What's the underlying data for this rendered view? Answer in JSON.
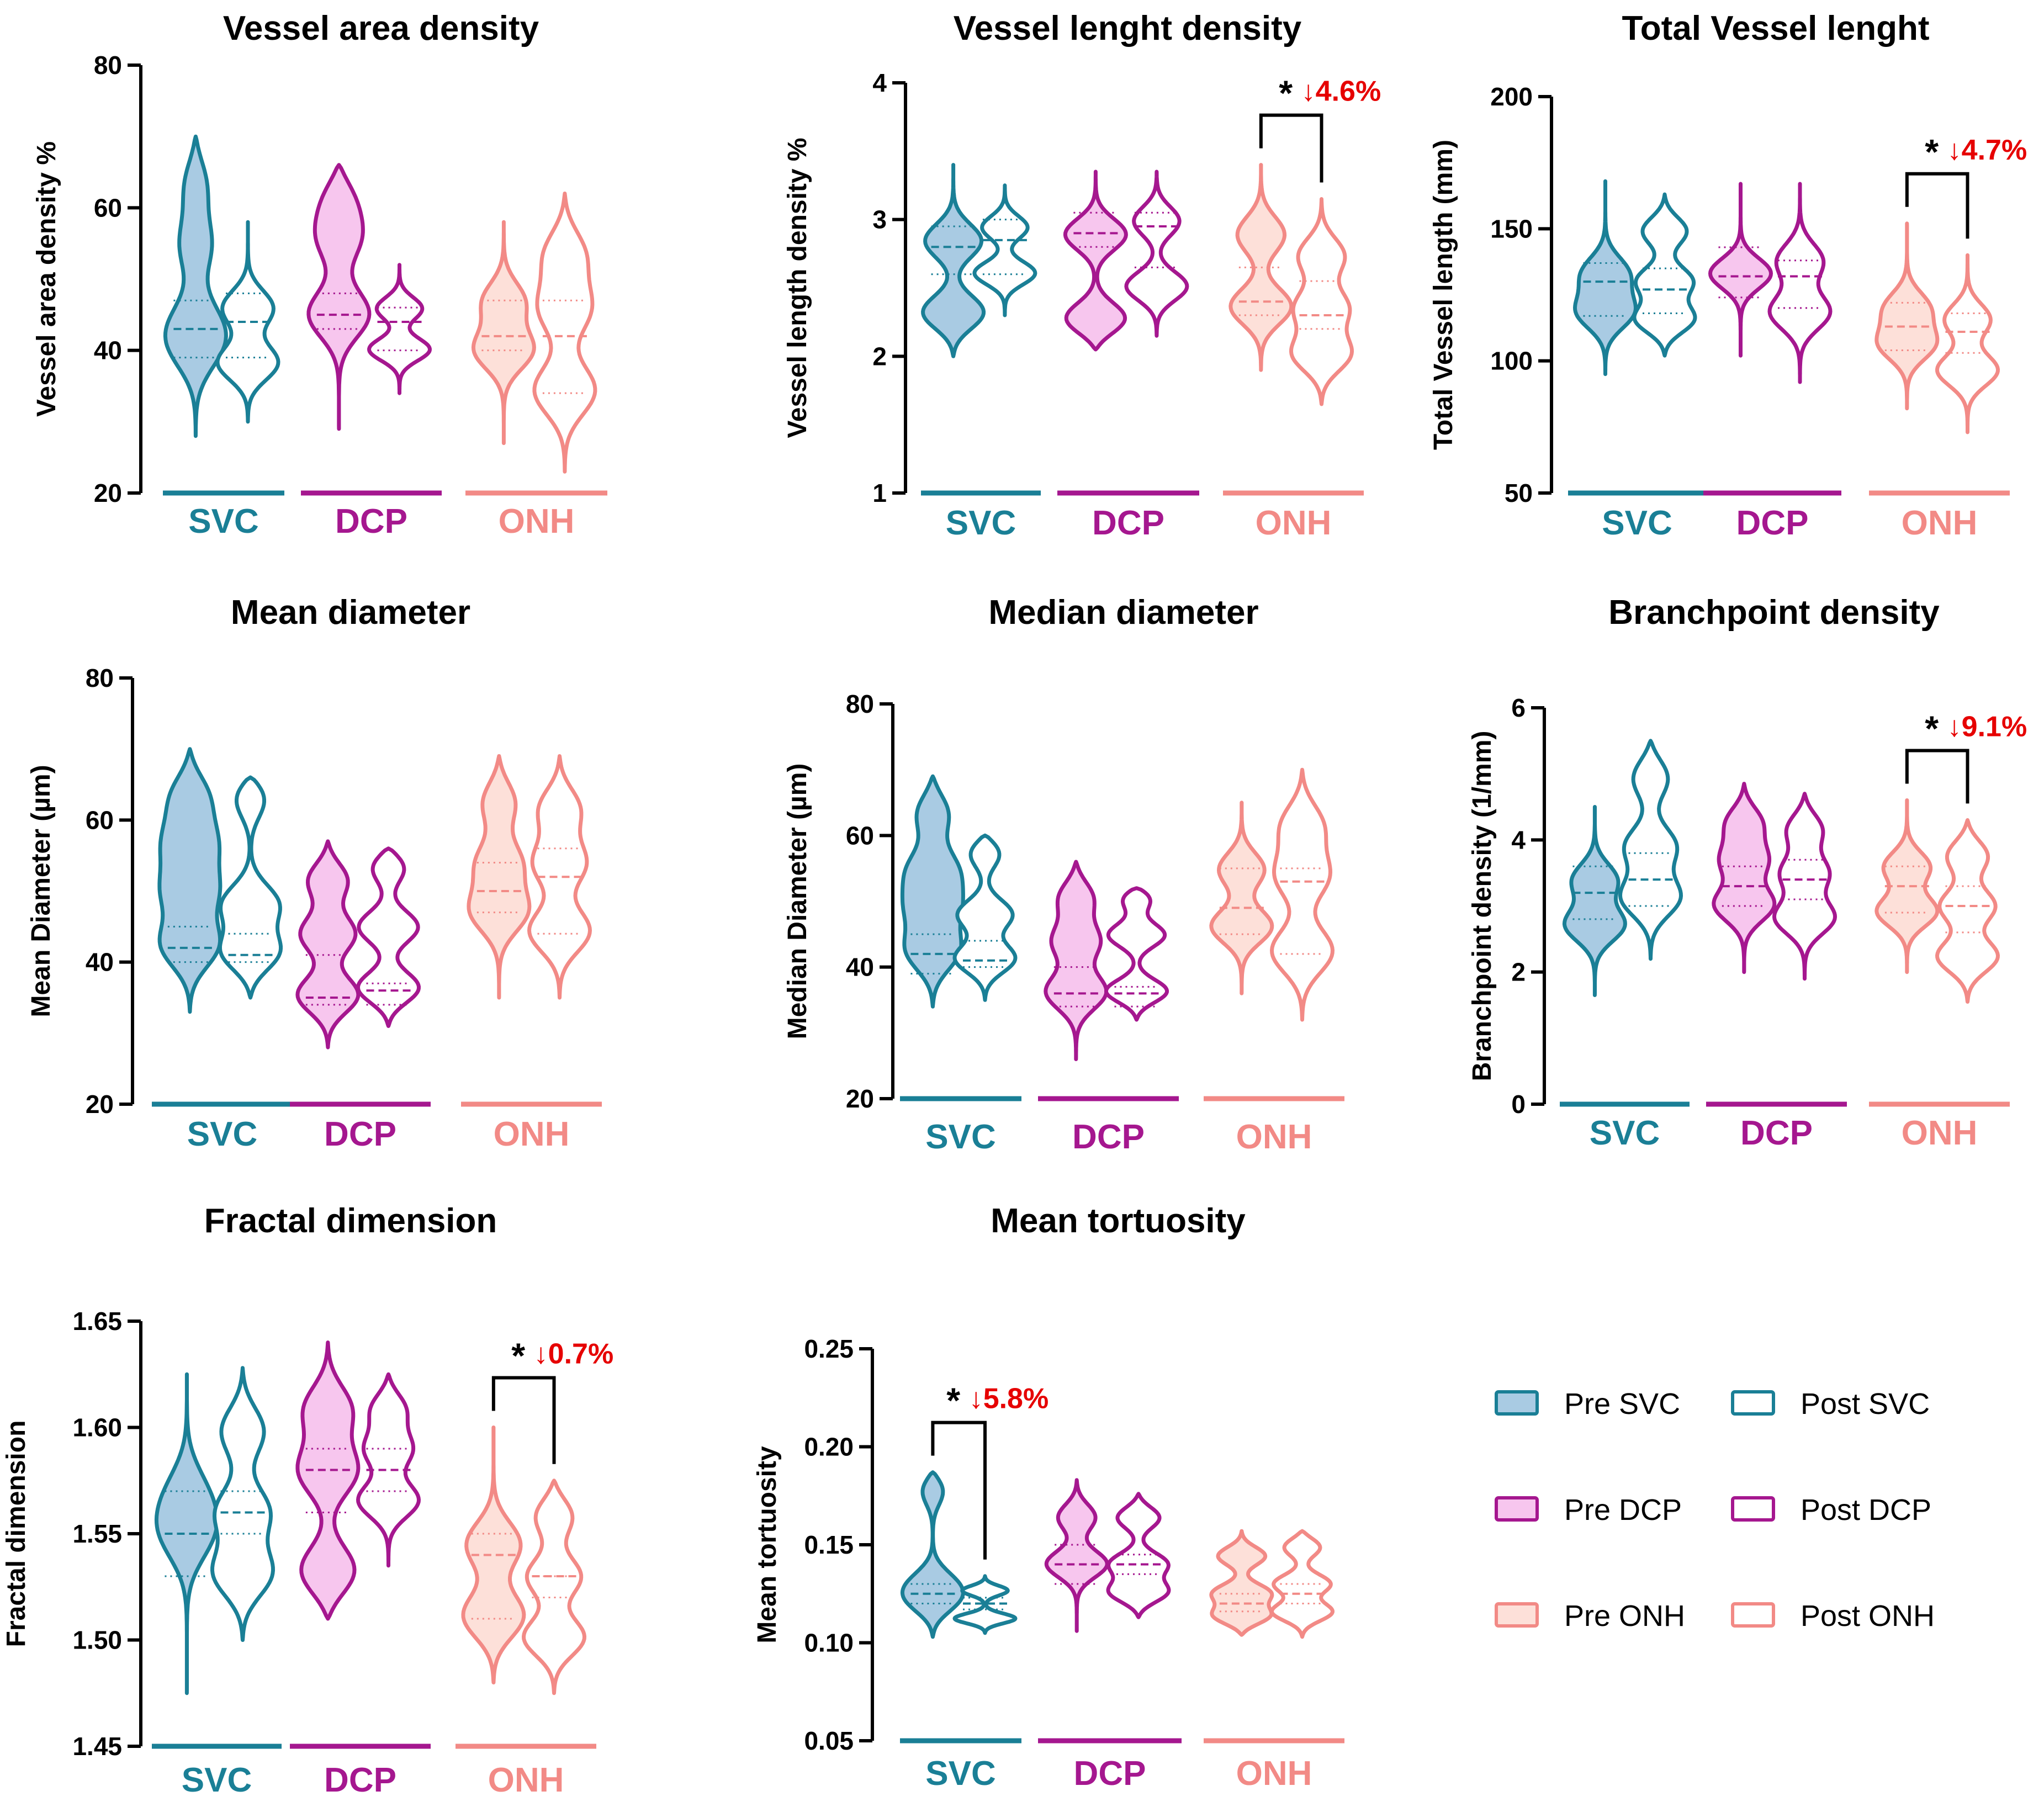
{
  "colors": {
    "SVC": "#1a7f96",
    "DCP": "#a5178f",
    "ONH": "#f28a86",
    "SVC_fill": "#a9cbe3",
    "DCP_fill": "#f7c6ee",
    "ONH_fill": "#fde0d9",
    "significance": "#e60000"
  },
  "groups": [
    "SVC",
    "DCP",
    "ONH"
  ],
  "legend": [
    {
      "label": "Pre SVC",
      "group": "SVC",
      "filled": true
    },
    {
      "label": "Post SVC",
      "group": "SVC",
      "filled": false
    },
    {
      "label": "Pre DCP",
      "group": "DCP",
      "filled": true
    },
    {
      "label": "Post DCP",
      "group": "DCP",
      "filled": false
    },
    {
      "label": "Pre ONH",
      "group": "ONH",
      "filled": true
    },
    {
      "label": "Post ONH",
      "group": "ONH",
      "filled": false
    }
  ],
  "chart_data": [
    {
      "type": "violin",
      "title": "Vessel area density",
      "ylabel": "Vessel area density %",
      "ylim": [
        20,
        80
      ],
      "yticks": [
        "20",
        "40",
        "60",
        "80"
      ],
      "categories": [
        "SVC",
        "DCP",
        "ONH"
      ],
      "series": [
        {
          "name": "Pre SVC",
          "min": 28,
          "max": 70,
          "median": 43,
          "q1": 39,
          "q3": 47,
          "modes": [
            40,
            44,
            55,
            64
          ]
        },
        {
          "name": "Post SVC",
          "min": 30,
          "max": 58,
          "median": 44,
          "q1": 39,
          "q3": 48,
          "modes": [
            38,
            46
          ]
        },
        {
          "name": "Pre DCP",
          "min": 29,
          "max": 66,
          "median": 45,
          "q1": 43,
          "q3": 48,
          "modes": [
            45,
            56,
            62
          ]
        },
        {
          "name": "Post DCP",
          "min": 34,
          "max": 52,
          "median": 44,
          "q1": 40,
          "q3": 46,
          "modes": [
            40,
            46
          ]
        },
        {
          "name": "Pre ONH",
          "min": 27,
          "max": 58,
          "median": 42,
          "q1": 40,
          "q3": 47,
          "modes": [
            40,
            47
          ]
        },
        {
          "name": "Post ONH",
          "min": 23,
          "max": 62,
          "median": 42,
          "q1": 34,
          "q3": 47,
          "modes": [
            34,
            46,
            54
          ]
        }
      ],
      "significance": null
    },
    {
      "type": "violin",
      "title": "Vessel lenght density",
      "ylabel": "Vessel length density %",
      "ylim": [
        1,
        4
      ],
      "yticks": [
        "1",
        "2",
        "3",
        "4"
      ],
      "categories": [
        "SVC",
        "DCP",
        "ONH"
      ],
      "series": [
        {
          "name": "Pre SVC",
          "min": 2.0,
          "max": 3.4,
          "median": 2.8,
          "q1": 2.6,
          "q3": 2.95,
          "modes": [
            2.3,
            2.85
          ]
        },
        {
          "name": "Post SVC",
          "min": 2.3,
          "max": 3.25,
          "median": 2.85,
          "q1": 2.6,
          "q3": 3.0,
          "modes": [
            2.6,
            2.95
          ]
        },
        {
          "name": "Pre DCP",
          "min": 2.05,
          "max": 3.35,
          "median": 2.9,
          "q1": 2.8,
          "q3": 3.05,
          "modes": [
            2.25,
            2.9
          ]
        },
        {
          "name": "Post DCP",
          "min": 2.15,
          "max": 3.35,
          "median": 2.95,
          "q1": 2.65,
          "q3": 3.05,
          "modes": [
            2.5,
            3.0
          ]
        },
        {
          "name": "Pre ONH",
          "min": 1.9,
          "max": 3.4,
          "median": 2.4,
          "q1": 2.3,
          "q3": 2.65,
          "modes": [
            2.35,
            2.9
          ]
        },
        {
          "name": "Post ONH",
          "min": 1.65,
          "max": 3.15,
          "median": 2.3,
          "q1": 2.2,
          "q3": 2.55,
          "modes": [
            2.0,
            2.35,
            2.75
          ]
        }
      ],
      "significance": {
        "group": "ONH",
        "star": "*",
        "label": "↓4.6%"
      }
    },
    {
      "type": "violin",
      "title": "Total Vessel lenght",
      "ylabel": "Total Vessel length (mm)",
      "ylim": [
        50,
        200
      ],
      "yticks": [
        "50",
        "100",
        "150",
        "200"
      ],
      "categories": [
        "SVC",
        "DCP",
        "ONH"
      ],
      "series": [
        {
          "name": "Pre SVC",
          "min": 95,
          "max": 168,
          "median": 130,
          "q1": 117,
          "q3": 137,
          "modes": [
            118,
            133
          ]
        },
        {
          "name": "Post SVC",
          "min": 102,
          "max": 163,
          "median": 127,
          "q1": 118,
          "q3": 135,
          "modes": [
            115,
            130,
            150
          ]
        },
        {
          "name": "Pre DCP",
          "min": 102,
          "max": 167,
          "median": 132,
          "q1": 124,
          "q3": 143,
          "modes": [
            133
          ]
        },
        {
          "name": "Post DCP",
          "min": 92,
          "max": 167,
          "median": 132,
          "q1": 120,
          "q3": 138,
          "modes": [
            118,
            138
          ]
        },
        {
          "name": "Pre ONH",
          "min": 82,
          "max": 152,
          "median": 113,
          "q1": 104,
          "q3": 122,
          "modes": [
            106,
            120
          ]
        },
        {
          "name": "Post ONH",
          "min": 73,
          "max": 140,
          "median": 111,
          "q1": 103,
          "q3": 118,
          "modes": [
            96,
            116
          ]
        }
      ],
      "significance": {
        "group": "ONH",
        "star": "*",
        "label": "↓4.7%"
      }
    },
    {
      "type": "violin",
      "title": "Mean diameter",
      "ylabel": "Mean Diameter (µm)",
      "ylim": [
        20,
        80
      ],
      "yticks": [
        "20",
        "40",
        "60",
        "80"
      ],
      "categories": [
        "SVC",
        "DCP",
        "ONH"
      ],
      "series": [
        {
          "name": "Pre SVC",
          "min": 33,
          "max": 70,
          "median": 42,
          "q1": 40,
          "q3": 45,
          "modes": [
            42,
            50,
            57,
            64
          ]
        },
        {
          "name": "Post SVC",
          "min": 35,
          "max": 66,
          "median": 41,
          "q1": 40,
          "q3": 44,
          "modes": [
            41,
            48,
            64
          ]
        },
        {
          "name": "Pre DCP",
          "min": 28,
          "max": 57,
          "median": 35,
          "q1": 34,
          "q3": 41,
          "modes": [
            35,
            44,
            52
          ]
        },
        {
          "name": "Post DCP",
          "min": 31,
          "max": 56,
          "median": 36,
          "q1": 34,
          "q3": 37,
          "modes": [
            36,
            45,
            54
          ]
        },
        {
          "name": "Pre ONH",
          "min": 35,
          "max": 69,
          "median": 50,
          "q1": 47,
          "q3": 54,
          "modes": [
            47,
            54,
            63
          ]
        },
        {
          "name": "Post ONH",
          "min": 35,
          "max": 69,
          "median": 52,
          "q1": 44,
          "q3": 56,
          "modes": [
            44,
            54,
            62
          ]
        }
      ],
      "significance": null
    },
    {
      "type": "violin",
      "title": "Median diameter",
      "ylabel": "Median Diameter (µm)",
      "ylim": [
        20,
        80
      ],
      "yticks": [
        "20",
        "40",
        "60",
        "80"
      ],
      "categories": [
        "SVC",
        "DCP",
        "ONH"
      ],
      "series": [
        {
          "name": "Pre SVC",
          "min": 34,
          "max": 69,
          "median": 42,
          "q1": 39,
          "q3": 45,
          "modes": [
            42,
            49,
            55,
            64
          ]
        },
        {
          "name": "Post SVC",
          "min": 35,
          "max": 60,
          "median": 41,
          "q1": 40,
          "q3": 44,
          "modes": [
            41,
            48,
            58
          ]
        },
        {
          "name": "Pre DCP",
          "min": 26,
          "max": 56,
          "median": 36,
          "q1": 34,
          "q3": 40,
          "modes": [
            36,
            44,
            51
          ]
        },
        {
          "name": "Post DCP",
          "min": 32,
          "max": 52,
          "median": 36,
          "q1": 34,
          "q3": 37,
          "modes": [
            36,
            45,
            51
          ]
        },
        {
          "name": "Pre ONH",
          "min": 36,
          "max": 65,
          "median": 49,
          "q1": 45,
          "q3": 55,
          "modes": [
            46,
            55
          ]
        },
        {
          "name": "Post ONH",
          "min": 32,
          "max": 70,
          "median": 53,
          "q1": 42,
          "q3": 55,
          "modes": [
            42,
            54,
            62
          ]
        }
      ],
      "significance": null
    },
    {
      "type": "violin",
      "title": "Branchpoint density",
      "ylabel": "Branchpoint density (1/mm)",
      "ylim": [
        0,
        6
      ],
      "yticks": [
        "0",
        "2",
        "4",
        "6"
      ],
      "categories": [
        "SVC",
        "DCP",
        "ONH"
      ],
      "series": [
        {
          "name": "Pre SVC",
          "min": 1.65,
          "max": 4.5,
          "median": 3.2,
          "q1": 2.8,
          "q3": 3.6,
          "modes": [
            2.7,
            3.4
          ]
        },
        {
          "name": "Post SVC",
          "min": 2.2,
          "max": 5.5,
          "median": 3.4,
          "q1": 3.0,
          "q3": 3.8,
          "modes": [
            3.1,
            3.9,
            5.0
          ]
        },
        {
          "name": "Pre DCP",
          "min": 2.0,
          "max": 4.85,
          "median": 3.3,
          "q1": 3.0,
          "q3": 3.6,
          "modes": [
            3.0,
            3.7,
            4.3
          ]
        },
        {
          "name": "Post DCP",
          "min": 1.9,
          "max": 4.7,
          "median": 3.4,
          "q1": 3.1,
          "q3": 3.7,
          "modes": [
            2.8,
            3.5,
            4.2
          ]
        },
        {
          "name": "Pre ONH",
          "min": 2.0,
          "max": 4.6,
          "median": 3.3,
          "q1": 2.9,
          "q3": 3.6,
          "modes": [
            2.9,
            3.6
          ]
        },
        {
          "name": "Post ONH",
          "min": 1.55,
          "max": 4.3,
          "median": 3.0,
          "q1": 2.6,
          "q3": 3.3,
          "modes": [
            2.2,
            3.0,
            3.8
          ]
        }
      ],
      "significance": {
        "group": "ONH",
        "star": "*",
        "label": "↓9.1%"
      }
    },
    {
      "type": "violin",
      "title": "Fractal dimension",
      "ylabel": "Fractal dimension",
      "ylim": [
        1.45,
        1.65
      ],
      "yticks": [
        "1.45",
        "1.50",
        "1.55",
        "1.60",
        "1.65"
      ],
      "categories": [
        "SVC",
        "DCP",
        "ONH"
      ],
      "series": [
        {
          "name": "Pre SVC",
          "min": 1.475,
          "max": 1.625,
          "median": 1.55,
          "q1": 1.53,
          "q3": 1.57,
          "modes": [
            1.55,
            1.57
          ]
        },
        {
          "name": "Post SVC",
          "min": 1.5,
          "max": 1.628,
          "median": 1.56,
          "q1": 1.55,
          "q3": 1.57,
          "modes": [
            1.53,
            1.56,
            1.6
          ]
        },
        {
          "name": "Pre DCP",
          "min": 1.51,
          "max": 1.64,
          "median": 1.58,
          "q1": 1.56,
          "q3": 1.59,
          "modes": [
            1.53,
            1.58,
            1.61
          ]
        },
        {
          "name": "Post DCP",
          "min": 1.535,
          "max": 1.625,
          "median": 1.58,
          "q1": 1.57,
          "q3": 1.59,
          "modes": [
            1.565,
            1.59,
            1.61
          ]
        },
        {
          "name": "Pre ONH",
          "min": 1.48,
          "max": 1.6,
          "median": 1.54,
          "q1": 1.51,
          "q3": 1.55,
          "modes": [
            1.51,
            1.545
          ]
        },
        {
          "name": "Post ONH",
          "min": 1.475,
          "max": 1.575,
          "median": 1.53,
          "q1": 1.52,
          "q3": 1.53,
          "modes": [
            1.5,
            1.53,
            1.56
          ]
        }
      ],
      "significance": {
        "group": "ONH",
        "star": "*",
        "label": "↓0.7%"
      }
    },
    {
      "type": "violin",
      "title": "Mean tortuosity",
      "ylabel": "Mean tortuosity",
      "ylim": [
        0.05,
        0.25
      ],
      "yticks": [
        "0.05",
        "0.10",
        "0.15",
        "0.20",
        "0.25"
      ],
      "categories": [
        "SVC",
        "DCP",
        "ONH"
      ],
      "series": [
        {
          "name": "Pre SVC",
          "min": 0.103,
          "max": 0.187,
          "median": 0.125,
          "q1": 0.12,
          "q3": 0.13,
          "modes": [
            0.12,
            0.13,
            0.18
          ]
        },
        {
          "name": "Post SVC",
          "min": 0.105,
          "max": 0.134,
          "median": 0.12,
          "q1": 0.117,
          "q3": 0.123,
          "modes": [
            0.112,
            0.127
          ]
        },
        {
          "name": "Pre DCP",
          "min": 0.106,
          "max": 0.183,
          "median": 0.14,
          "q1": 0.13,
          "q3": 0.15,
          "modes": [
            0.14,
            0.165
          ]
        },
        {
          "name": "Post DCP",
          "min": 0.113,
          "max": 0.176,
          "median": 0.14,
          "q1": 0.135,
          "q3": 0.145,
          "modes": [
            0.125,
            0.14,
            0.165
          ]
        },
        {
          "name": "Pre ONH",
          "min": 0.104,
          "max": 0.157,
          "median": 0.12,
          "q1": 0.116,
          "q3": 0.125,
          "modes": [
            0.113,
            0.125,
            0.145
          ]
        },
        {
          "name": "Post ONH",
          "min": 0.103,
          "max": 0.157,
          "median": 0.125,
          "q1": 0.12,
          "q3": 0.13,
          "modes": [
            0.115,
            0.13,
            0.15
          ]
        }
      ],
      "significance": {
        "group": "SVC",
        "star": "*",
        "label": "↓5.8%"
      }
    }
  ]
}
